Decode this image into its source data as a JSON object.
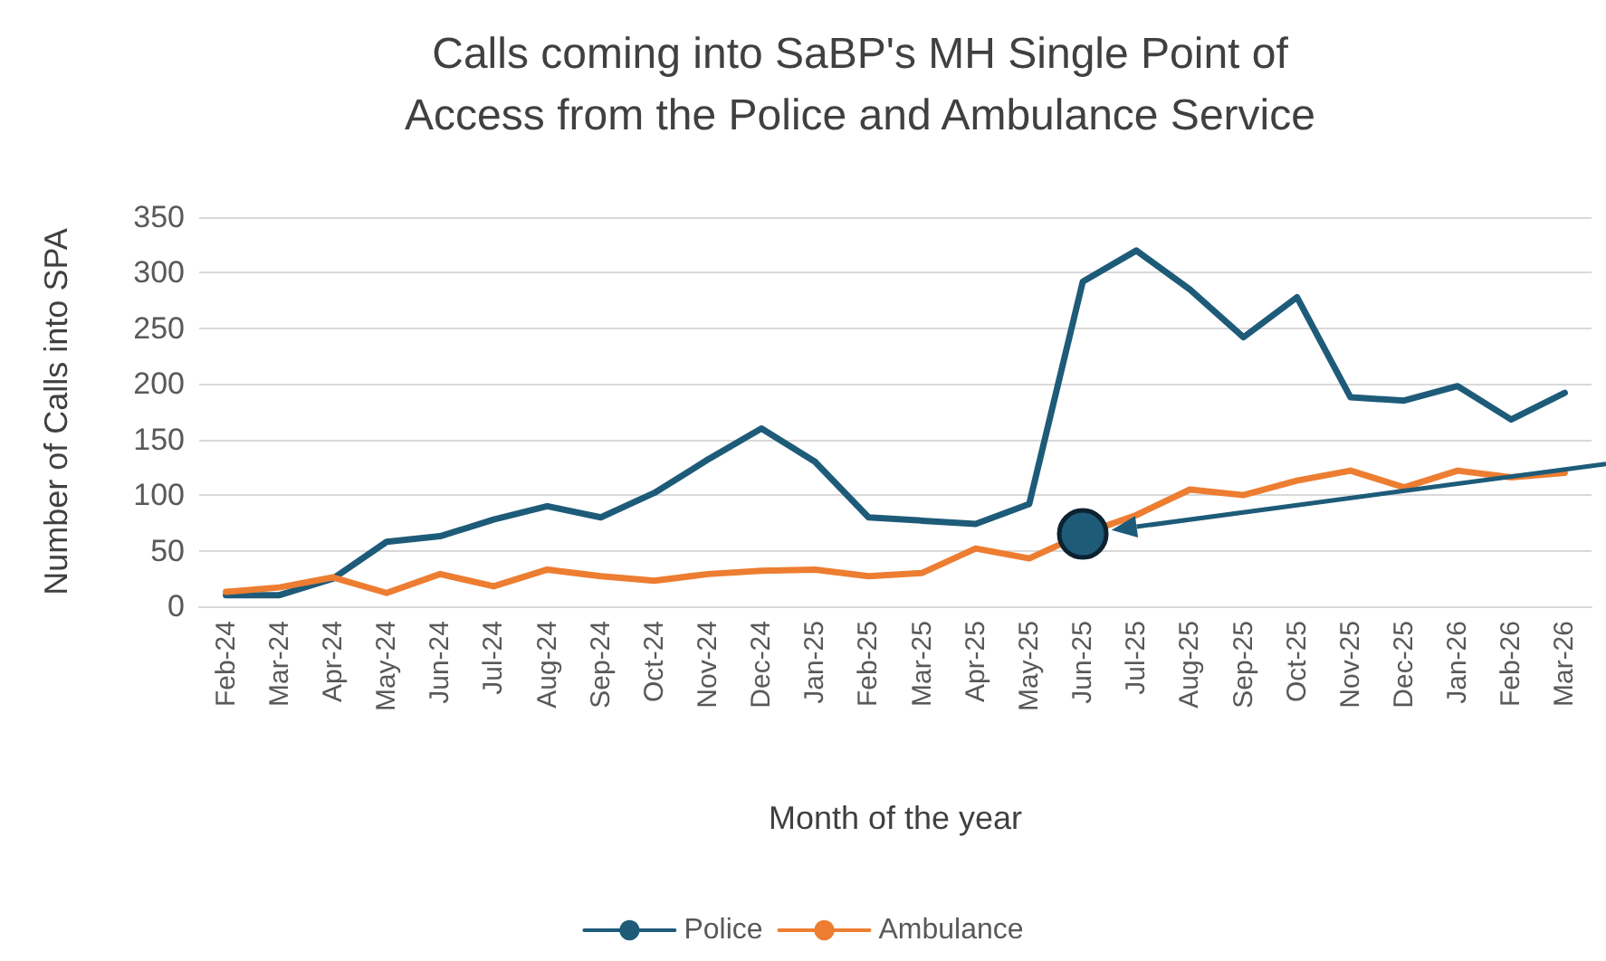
{
  "chart_data": {
    "type": "line",
    "title": "Calls coming into SaBP's MH Single Point of\nAccess from the Police and Ambulance Service",
    "xlabel": "Month of the year",
    "ylabel": "Number of Calls into SPA",
    "categories": [
      "Feb-24",
      "Mar-24",
      "Apr-24",
      "May-24",
      "Jun-24",
      "Jul-24",
      "Aug-24",
      "Sep-24",
      "Oct-24",
      "Nov-24",
      "Dec-24",
      "Jan-25",
      "Feb-25",
      "Mar-25",
      "Apr-25",
      "May-25",
      "Jun-25",
      "Jul-25",
      "Aug-25",
      "Sep-25",
      "Oct-25",
      "Nov-25",
      "Dec-25",
      "Jan-26",
      "Feb-26",
      "Mar-26"
    ],
    "series": [
      {
        "name": "Police",
        "color": "#1d5b79",
        "values": [
          10,
          10,
          25,
          58,
          63,
          78,
          90,
          80,
          102,
          132,
          160,
          130,
          80,
          77,
          74,
          92,
          292,
          320,
          285,
          242,
          278,
          188,
          185,
          198,
          168,
          192
        ]
      },
      {
        "name": "Ambulance",
        "color": "#ed7d31",
        "values": [
          13,
          17,
          26,
          12,
          29,
          18,
          33,
          27,
          23,
          29,
          32,
          33,
          27,
          30,
          52,
          43,
          65,
          82,
          105,
          100,
          113,
          122,
          107,
          122,
          116,
          120
        ]
      }
    ],
    "ylim": [
      0,
      350
    ],
    "yticks": [
      0,
      50,
      100,
      150,
      200,
      250,
      300,
      350
    ],
    "grid": "y",
    "legend": "bottom",
    "marker": "none",
    "line_style": "solid"
  }
}
